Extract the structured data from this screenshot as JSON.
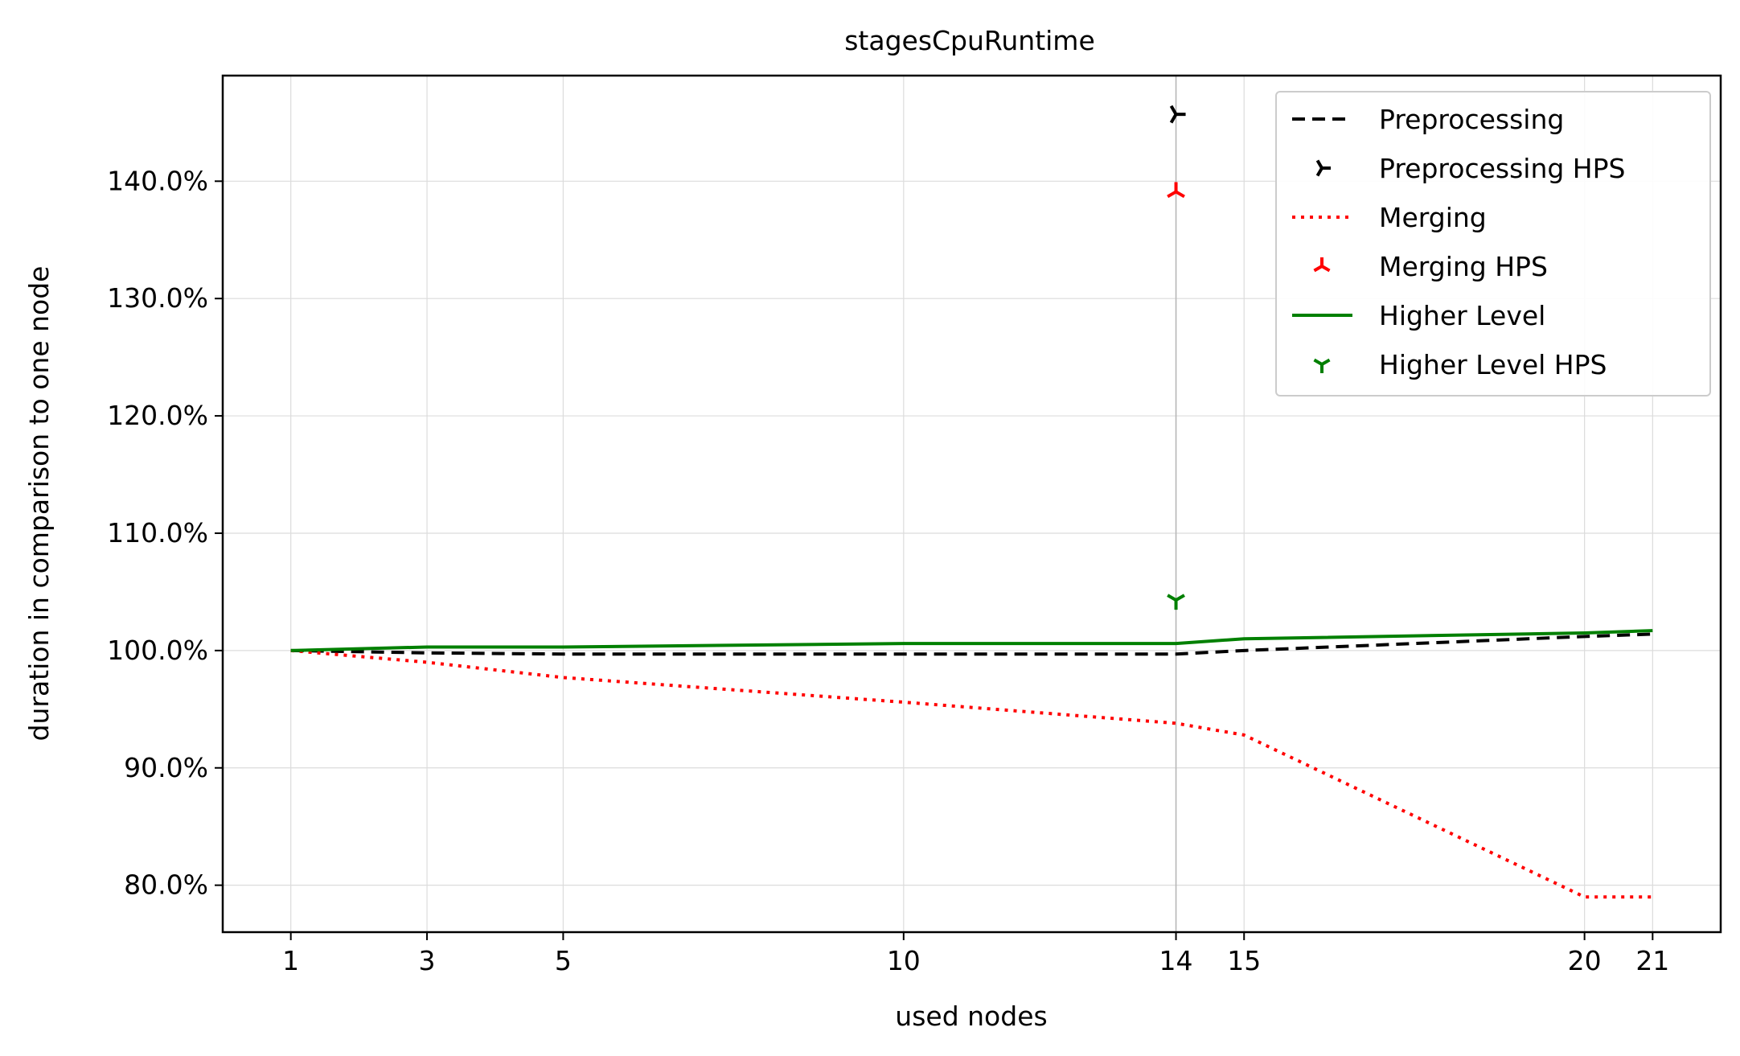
{
  "chart_data": {
    "type": "line",
    "title": "stagesCpuRuntime",
    "xlabel": "used nodes",
    "ylabel": "duration in comparison to one node",
    "x": [
      1,
      3,
      5,
      10,
      14,
      15,
      20,
      21
    ],
    "x_ticks": [
      "1",
      "3",
      "5",
      "10",
      "14",
      "15",
      "20",
      "21"
    ],
    "xlim": [
      0,
      22
    ],
    "ylim": [
      76,
      149
    ],
    "y_ticks": [
      80,
      90,
      100,
      110,
      120,
      130,
      140
    ],
    "y_tick_labels": [
      "80.0%",
      "90.0%",
      "100.0%",
      "110.0%",
      "120.0%",
      "130.0%",
      "140.0%"
    ],
    "grid": true,
    "legend_position": "top-right",
    "vertical_marker_x": 14,
    "series": [
      {
        "name": "Preprocessing",
        "kind": "line",
        "style": "dashed",
        "color": "#000000",
        "values": [
          100.0,
          99.8,
          99.7,
          99.7,
          99.7,
          100.0,
          101.2,
          101.4
        ]
      },
      {
        "name": "Preprocessing HPS",
        "kind": "marker",
        "marker": "tri-left",
        "color": "#000000",
        "points": [
          [
            14,
            145.7
          ]
        ]
      },
      {
        "name": "Merging",
        "kind": "line",
        "style": "dotted",
        "color": "#ff0000",
        "values": [
          100.0,
          99.0,
          97.7,
          95.6,
          93.8,
          92.8,
          79.0,
          79.0
        ]
      },
      {
        "name": "Merging HPS",
        "kind": "marker",
        "marker": "tri-down",
        "color": "#ff0000",
        "points": [
          [
            14,
            139.1
          ]
        ]
      },
      {
        "name": "Higher Level",
        "kind": "line",
        "style": "solid",
        "color": "#008000",
        "values": [
          100.0,
          100.3,
          100.3,
          100.6,
          100.6,
          101.0,
          101.5,
          101.7
        ]
      },
      {
        "name": "Higher Level HPS",
        "kind": "marker",
        "marker": "tri-up",
        "color": "#008000",
        "points": [
          [
            14,
            104.3
          ]
        ]
      }
    ]
  }
}
